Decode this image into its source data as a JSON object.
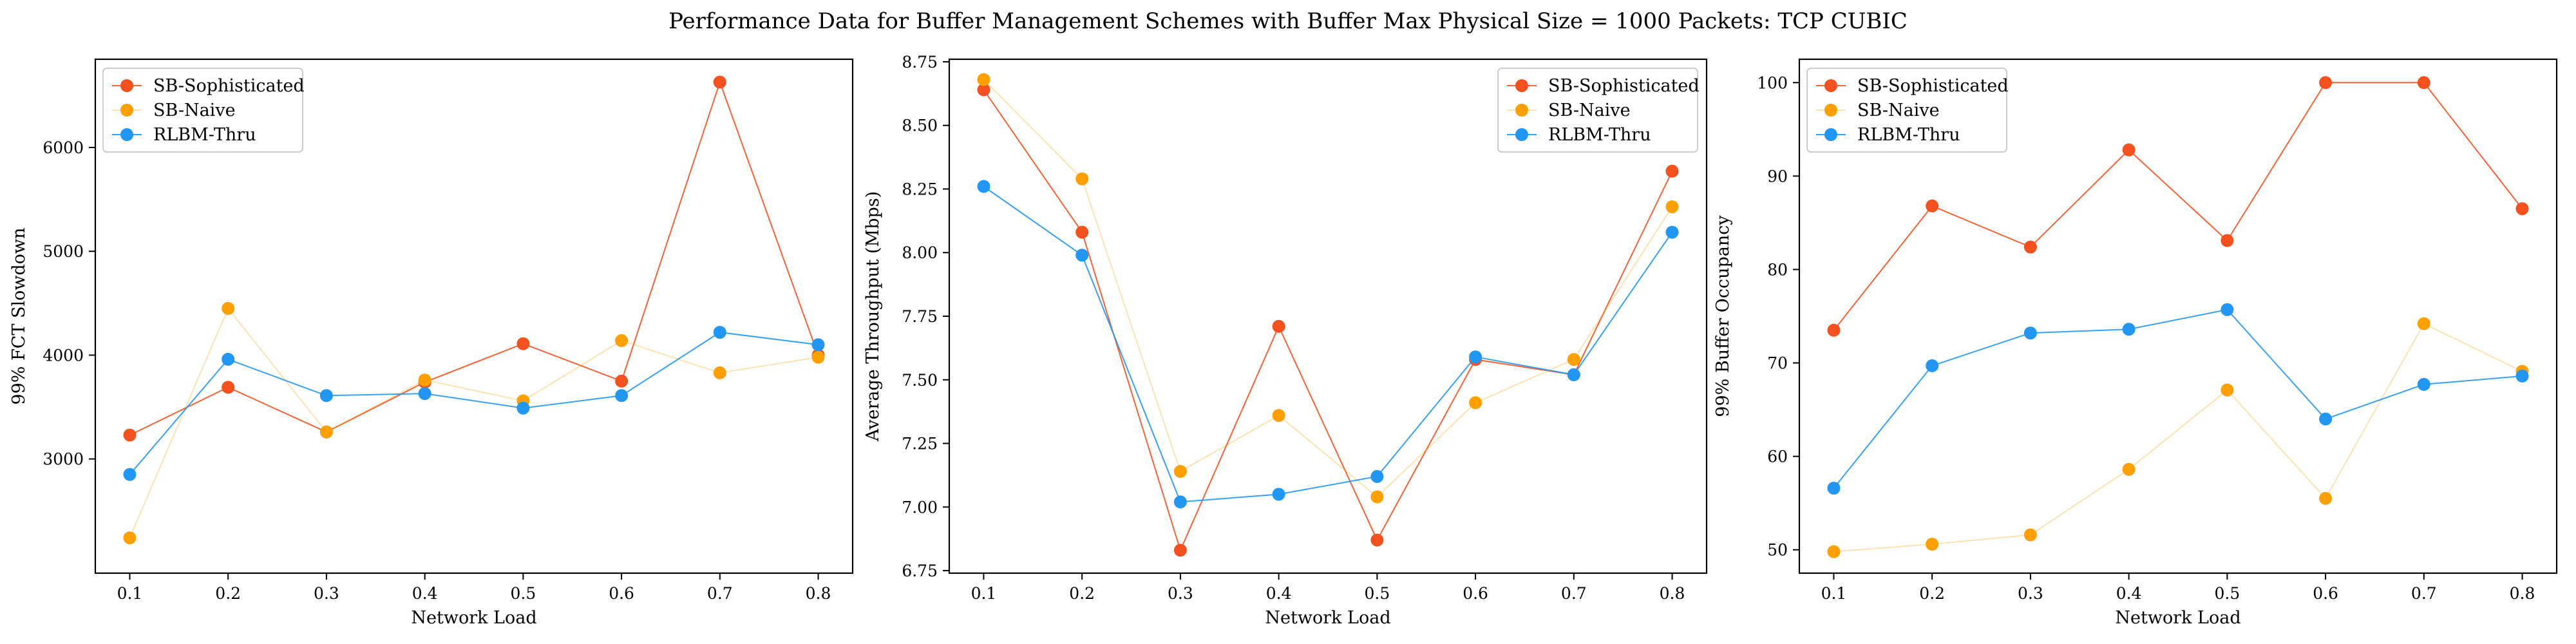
{
  "figure": {
    "title": "Performance Data for Buffer Management Schemes with Buffer Max Physical Size = 1000 Packets: TCP CUBIC"
  },
  "series_styles": [
    {
      "name": "SB-Sophisticated",
      "color": "#f4511e",
      "line_opacity": 0.9
    },
    {
      "name": "SB-Naive",
      "color": "#ffa000",
      "line_opacity": 0.3
    },
    {
      "name": "RLBM-Thru",
      "color": "#2196f3",
      "line_opacity": 0.9
    }
  ],
  "chart_data": [
    {
      "type": "line",
      "xlabel": "Network Load",
      "ylabel": "99% FCT Slowdown",
      "x": [
        0.1,
        0.2,
        0.3,
        0.4,
        0.5,
        0.6,
        0.7,
        0.8
      ],
      "x_ticks": [
        "0.1",
        "0.2",
        "0.3",
        "0.4",
        "0.5",
        "0.6",
        "0.7",
        "0.8"
      ],
      "xlim": [
        0.065,
        0.835
      ],
      "ylim": [
        1900,
        6850
      ],
      "y_ticks": [
        3000,
        4000,
        5000,
        6000
      ],
      "y_tick_labels": [
        "3000",
        "4000",
        "5000",
        "6000"
      ],
      "legend": "top-left",
      "grid": false,
      "series": [
        {
          "name": "SB-Sophisticated",
          "values": [
            3230,
            3690,
            3260,
            3740,
            4110,
            3750,
            6630,
            4000
          ]
        },
        {
          "name": "SB-Naive",
          "values": [
            2240,
            4450,
            3260,
            3760,
            3560,
            4140,
            3830,
            3980
          ]
        },
        {
          "name": "RLBM-Thru",
          "values": [
            2850,
            3960,
            3610,
            3630,
            3490,
            3610,
            4220,
            4100
          ]
        }
      ]
    },
    {
      "type": "line",
      "xlabel": "Network Load",
      "ylabel": "Average Throughput (Mbps)",
      "x": [
        0.1,
        0.2,
        0.3,
        0.4,
        0.5,
        0.6,
        0.7,
        0.8
      ],
      "x_ticks": [
        "0.1",
        "0.2",
        "0.3",
        "0.4",
        "0.5",
        "0.6",
        "0.7",
        "0.8"
      ],
      "xlim": [
        0.065,
        0.835
      ],
      "ylim": [
        6.74,
        8.76
      ],
      "y_ticks": [
        6.75,
        7.0,
        7.25,
        7.5,
        7.75,
        8.0,
        8.25,
        8.5,
        8.75
      ],
      "y_tick_labels": [
        "6.75",
        "7.00",
        "7.25",
        "7.50",
        "7.75",
        "8.00",
        "8.25",
        "8.50",
        "8.75"
      ],
      "legend": "top-right",
      "grid": false,
      "series": [
        {
          "name": "SB-Sophisticated",
          "values": [
            8.64,
            8.08,
            6.83,
            7.71,
            6.87,
            7.58,
            7.52,
            8.32
          ]
        },
        {
          "name": "SB-Naive",
          "values": [
            8.68,
            8.29,
            7.14,
            7.36,
            7.04,
            7.41,
            7.58,
            8.18
          ]
        },
        {
          "name": "RLBM-Thru",
          "values": [
            8.26,
            7.99,
            7.02,
            7.05,
            7.12,
            7.59,
            7.52,
            8.08
          ]
        }
      ]
    },
    {
      "type": "line",
      "xlabel": "Network Load",
      "ylabel": "99% Buffer Occupancy",
      "x": [
        0.1,
        0.2,
        0.3,
        0.4,
        0.5,
        0.6,
        0.7,
        0.8
      ],
      "x_ticks": [
        "0.1",
        "0.2",
        "0.3",
        "0.4",
        "0.5",
        "0.6",
        "0.7",
        "0.8"
      ],
      "xlim": [
        0.065,
        0.835
      ],
      "ylim": [
        47.5,
        102.5
      ],
      "y_ticks": [
        50,
        60,
        70,
        80,
        90,
        100
      ],
      "y_tick_labels": [
        "50",
        "60",
        "70",
        "80",
        "90",
        "100"
      ],
      "legend": "top-left",
      "grid": false,
      "series": [
        {
          "name": "SB-Sophisticated",
          "values": [
            73.5,
            86.8,
            82.4,
            92.8,
            83.1,
            100.0,
            100.0,
            86.5
          ]
        },
        {
          "name": "SB-Naive",
          "values": [
            49.8,
            50.6,
            51.6,
            58.6,
            67.1,
            55.5,
            74.2,
            69.1
          ]
        },
        {
          "name": "RLBM-Thru",
          "values": [
            56.6,
            69.7,
            73.2,
            73.6,
            75.7,
            64.0,
            67.7,
            68.6
          ]
        }
      ]
    }
  ]
}
